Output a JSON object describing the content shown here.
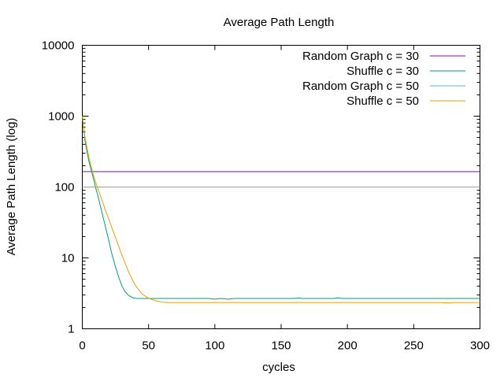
{
  "chart_data": {
    "type": "line",
    "title": "Average Path Length",
    "xlabel": "cycles",
    "ylabel": "Average Path Length (log)",
    "x_range": [
      0,
      300
    ],
    "y_range": [
      1,
      10000
    ],
    "y_scale": "log",
    "x_ticks": [
      "0",
      "50",
      "100",
      "150",
      "200",
      "250",
      "300"
    ],
    "y_ticks": [
      "1",
      "10",
      "100",
      "1000",
      "10000"
    ],
    "grid": false,
    "legend_position": "top-right",
    "series": [
      {
        "name": "Random Graph c = 30",
        "color": "#9400d3",
        "x": [
          0,
          300
        ],
        "y": [
          165,
          165
        ]
      },
      {
        "name": "Shuffle c = 30",
        "color": "#009e73",
        "x": [
          0,
          2,
          5,
          8,
          10,
          12,
          15,
          18,
          20,
          22,
          25,
          28,
          30,
          32,
          35,
          38,
          40,
          43,
          45,
          50,
          60,
          80,
          95,
          100,
          105,
          110,
          115,
          150,
          160,
          163,
          166,
          190,
          193,
          196,
          250,
          300
        ],
        "y": [
          1000,
          450,
          230,
          140,
          100,
          72,
          42,
          25,
          17.5,
          12,
          7.5,
          5,
          4,
          3.4,
          2.95,
          2.75,
          2.7,
          2.68,
          2.68,
          2.68,
          2.68,
          2.68,
          2.68,
          2.62,
          2.68,
          2.62,
          2.68,
          2.68,
          2.68,
          2.72,
          2.68,
          2.68,
          2.74,
          2.68,
          2.68,
          2.68
        ]
      },
      {
        "name": "Random Graph c = 50",
        "color": "#56b4e9",
        "x": [
          0,
          300
        ],
        "y": [
          100,
          100
        ]
      },
      {
        "name": "Shuffle c = 50",
        "color": "#e69f00",
        "x": [
          0,
          2,
          5,
          8,
          10,
          12,
          15,
          18,
          20,
          25,
          30,
          35,
          40,
          45,
          50,
          55,
          60,
          65,
          70,
          80,
          100,
          150,
          200,
          250,
          270,
          275,
          280,
          300
        ],
        "y": [
          1000,
          500,
          260,
          155,
          118,
          92,
          64,
          44,
          35,
          19.5,
          10.8,
          6.3,
          4.1,
          3.1,
          2.7,
          2.5,
          2.38,
          2.35,
          2.35,
          2.35,
          2.35,
          2.35,
          2.35,
          2.35,
          2.35,
          2.32,
          2.35,
          2.35
        ]
      }
    ]
  }
}
